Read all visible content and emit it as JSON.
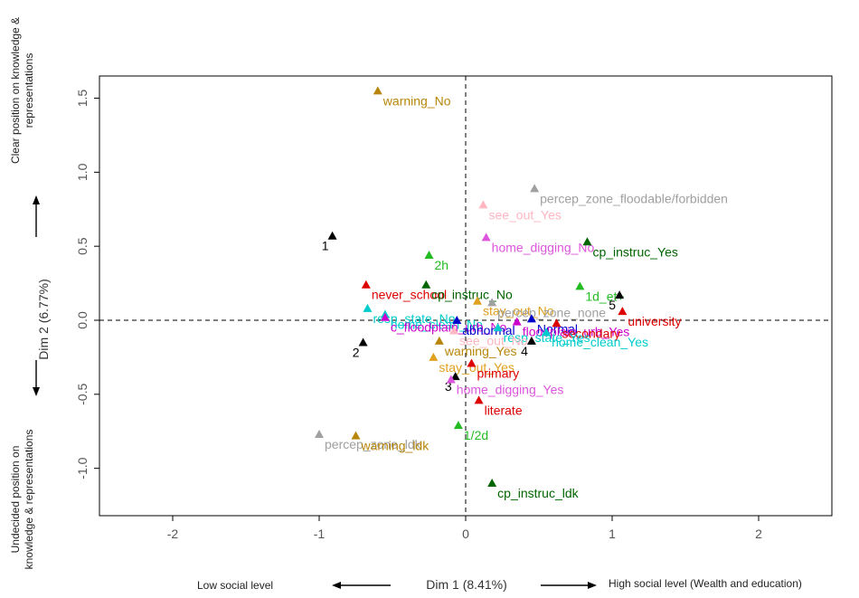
{
  "chart_data": {
    "type": "scatter",
    "title": "",
    "xlabel": "Dim 1 (8.41%)",
    "ylabel": "Dim 2 (6.77%)",
    "xlim": [
      -2.5,
      2.5
    ],
    "ylim": [
      -1.32,
      1.65
    ],
    "xticks": [
      -2,
      -1,
      0,
      1,
      2
    ],
    "yticks": [
      -1.0,
      -0.5,
      0.0,
      0.5,
      1.0,
      1.5
    ],
    "grid": false,
    "reference_lines": {
      "x": 0,
      "y": 0,
      "style": "dashed"
    },
    "points": [
      {
        "label": "warning_No",
        "x": -0.6,
        "y": 1.55,
        "color": "#b8860b"
      },
      {
        "label": "percep_zone_floodable/forbidden",
        "x": 0.47,
        "y": 0.89,
        "color": "#a0a0a0"
      },
      {
        "label": "see_out_Yes",
        "x": 0.12,
        "y": 0.78,
        "color": "#ffb6c1"
      },
      {
        "label": "home_digging_No",
        "x": 0.14,
        "y": 0.56,
        "color": "#dd55dd"
      },
      {
        "label": "cp_instruc_Yes",
        "x": 0.83,
        "y": 0.53,
        "color": "#006400"
      },
      {
        "label": "1",
        "x": -0.91,
        "y": 0.57,
        "color": "#000000"
      },
      {
        "label": "2h",
        "x": -0.25,
        "y": 0.44,
        "color": "#22bb22"
      },
      {
        "label": "never_school",
        "x": -0.68,
        "y": 0.24,
        "color": "#dd0000"
      },
      {
        "label": "cp_instruc_No",
        "x": -0.27,
        "y": 0.24,
        "color": "#006400"
      },
      {
        "label": "1d_et+",
        "x": 0.78,
        "y": 0.23,
        "color": "#22bb22"
      },
      {
        "label": "5",
        "x": 1.05,
        "y": 0.17,
        "color": "#000000"
      },
      {
        "label": "stay_out_No",
        "x": 0.08,
        "y": 0.13,
        "color": "#e0a020"
      },
      {
        "label": "percep_zone_none",
        "x": 0.18,
        "y": 0.12,
        "color": "#a0a0a0"
      },
      {
        "label": "university",
        "x": 1.07,
        "y": 0.06,
        "color": "#dd0000"
      },
      {
        "label": "resp_state_No",
        "x": -0.67,
        "y": 0.08,
        "color": "#00cccc"
      },
      {
        "label": "home_clean_No",
        "x": -0.55,
        "y": 0.04,
        "color": "#00cccc"
      },
      {
        "label": "c_floodplain_urb_No",
        "x": -0.55,
        "y": 0.02,
        "color": "#cc00cc"
      },
      {
        "label": "abnormal",
        "x": -0.06,
        "y": 0.0,
        "color": "#0000cc"
      },
      {
        "label": "Normal",
        "x": 0.45,
        "y": 0.01,
        "color": "#0000cc"
      },
      {
        "label": "floodplain_urb_Yes",
        "x": 0.35,
        "y": -0.01,
        "color": "#cc00cc"
      },
      {
        "label": "secondary",
        "x": 0.62,
        "y": -0.02,
        "color": "#dd0000"
      },
      {
        "label": "resp_state_Yes",
        "x": 0.22,
        "y": -0.05,
        "color": "#00cccc"
      },
      {
        "label": "see_out_No",
        "x": -0.08,
        "y": -0.07,
        "color": "#ffb6c1"
      },
      {
        "label": "home_clean_Yes",
        "x": 0.55,
        "y": -0.08,
        "color": "#00cccc"
      },
      {
        "label": "2",
        "x": -0.7,
        "y": -0.15,
        "color": "#000000"
      },
      {
        "label": "warning_Yes",
        "x": -0.18,
        "y": -0.14,
        "color": "#b8860b"
      },
      {
        "label": "4",
        "x": 0.45,
        "y": -0.14,
        "color": "#000000"
      },
      {
        "label": "stay_out_Yes",
        "x": -0.22,
        "y": -0.25,
        "color": "#e0a020"
      },
      {
        "label": "primary",
        "x": 0.04,
        "y": -0.29,
        "color": "#dd0000"
      },
      {
        "label": "3",
        "x": -0.07,
        "y": -0.38,
        "color": "#000000"
      },
      {
        "label": "home_digging_Yes",
        "x": -0.1,
        "y": -0.4,
        "color": "#dd55dd"
      },
      {
        "label": "literate",
        "x": 0.09,
        "y": -0.54,
        "color": "#dd0000"
      },
      {
        "label": "1/2d",
        "x": -0.05,
        "y": -0.71,
        "color": "#22bb22"
      },
      {
        "label": "percep_zone_ldk",
        "x": -1.0,
        "y": -0.77,
        "color": "#a0a0a0"
      },
      {
        "label": "warning_ldk",
        "x": -0.75,
        "y": -0.78,
        "color": "#b8860b"
      },
      {
        "label": "cp_instruc_ldk",
        "x": 0.18,
        "y": -1.1,
        "color": "#006400"
      }
    ]
  },
  "annotations": {
    "y_top": "Clear position on knowledge & representations",
    "y_bottom": "Undecided position on knowledge & representations",
    "x_left": "Low social level",
    "x_right": "High social level (Wealth and education)"
  }
}
